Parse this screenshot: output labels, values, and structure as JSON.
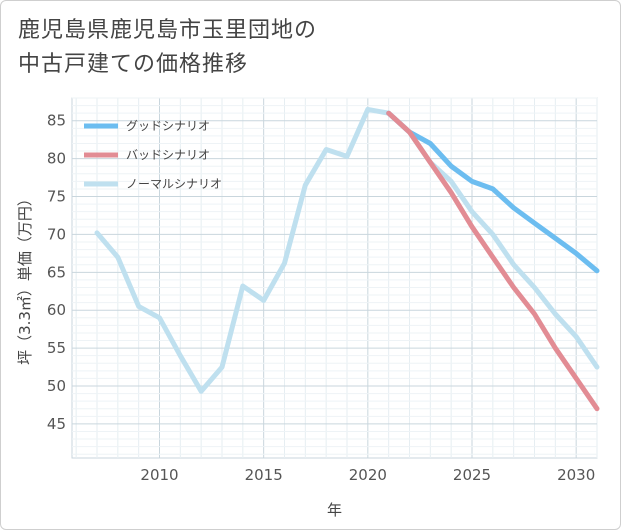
{
  "title_lines": [
    "鹿児島県鹿児島市玉里団地の",
    "中古戸建ての価格推移"
  ],
  "chart_data": {
    "type": "line",
    "title": "鹿児島県鹿児島市玉里団地の中古戸建ての価格推移",
    "xlabel": "年",
    "ylabel": "坪（3.3㎡）単価（万円）",
    "xlim": [
      2005.8,
      2031
    ],
    "ylim": [
      40.5,
      88
    ],
    "xticks": [
      2010,
      2015,
      2020,
      2025,
      2030
    ],
    "yticks": [
      45,
      50,
      55,
      60,
      65,
      70,
      75,
      80,
      85
    ],
    "legend_position": "top-left",
    "series": [
      {
        "name": "グッドシナリオ",
        "color": "#6cbdf0",
        "x": [
          2021,
          2022,
          2023,
          2024,
          2025,
          2026,
          2027,
          2028,
          2029,
          2030,
          2031
        ],
        "y": [
          86.0,
          83.5,
          82.0,
          79.0,
          77.0,
          76.0,
          73.5,
          71.5,
          69.5,
          67.5,
          65.2
        ]
      },
      {
        "name": "バッドシナリオ",
        "color": "#e28c94",
        "x": [
          2021,
          2022,
          2023,
          2024,
          2025,
          2026,
          2027,
          2028,
          2029,
          2030,
          2031
        ],
        "y": [
          86.0,
          83.5,
          79.5,
          75.5,
          71.0,
          67.0,
          63.0,
          59.5,
          55.0,
          51.0,
          47.0
        ]
      },
      {
        "name": "ノーマルシナリオ",
        "color": "#bfe0ef",
        "x": [
          2007,
          2008,
          2009,
          2010,
          2011,
          2012,
          2013,
          2014,
          2015,
          2016,
          2017,
          2018,
          2019,
          2020,
          2021,
          2022,
          2023,
          2024,
          2025,
          2026,
          2027,
          2028,
          2029,
          2030,
          2031
        ],
        "y": [
          70.2,
          67.0,
          60.5,
          59.0,
          54.0,
          49.3,
          52.5,
          63.2,
          61.3,
          66.2,
          76.5,
          81.2,
          80.3,
          86.5,
          86.0,
          83.5,
          79.5,
          77.0,
          73.0,
          70.0,
          66.0,
          63.0,
          59.5,
          56.5,
          52.5
        ]
      }
    ]
  }
}
